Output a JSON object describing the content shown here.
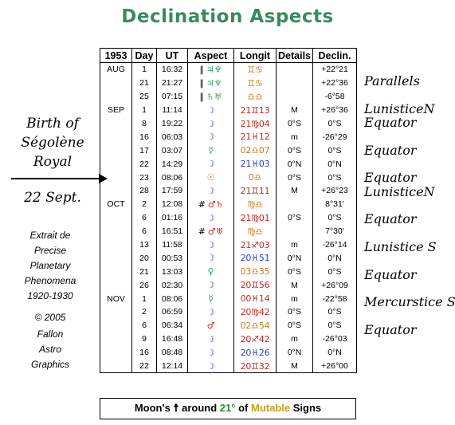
{
  "title": "Declination Aspects",
  "left": {
    "birth_lines": [
      "Birth of",
      "Ségolène",
      "Royal"
    ],
    "date": "22 Sept.",
    "credits": [
      "Extrait de",
      "Precise",
      "Planetary",
      "Phenomena",
      "1920-1930"
    ],
    "copyright": "© 2005",
    "publisher": [
      "Fallon",
      "Astro",
      "Graphics"
    ]
  },
  "table": {
    "headers": [
      "1953",
      "Day",
      "UT",
      "Aspect",
      "Longit",
      "Details",
      "Declin."
    ],
    "rows": [
      {
        "month": "AUG",
        "day": "1",
        "ut": "16:32",
        "p1": "∥",
        "a": "♃♆",
        "ac": "g",
        "lng": "♊♋",
        "lc": "o",
        "det": "",
        "dec": "+22°21"
      },
      {
        "month": "",
        "day": "21",
        "ut": "21:27",
        "p1": "∥",
        "a": "♃♆",
        "ac": "g",
        "lng": "♊♋",
        "lc": "o",
        "det": "",
        "dec": "+22°36"
      },
      {
        "month": "",
        "day": "25",
        "ut": "07:15",
        "p1": "∥",
        "a": "♄♅",
        "ac": "g",
        "lng": "♎♎",
        "lc": "o",
        "det": "",
        "dec": "-6°58"
      },
      {
        "month": "SEP",
        "day": "1",
        "ut": "11:14",
        "p1": "",
        "a": "☽",
        "ac": "b",
        "lng": "21♊13",
        "lc": "r",
        "det": "M",
        "dec": "+26°36"
      },
      {
        "month": "",
        "day": "8",
        "ut": "19:22",
        "p1": "",
        "a": "☽",
        "ac": "b",
        "lng": "21♍04",
        "lc": "r",
        "det": "0°S",
        "dec": "0°S"
      },
      {
        "month": "",
        "day": "16",
        "ut": "06:03",
        "p1": "",
        "a": "☽",
        "ac": "b",
        "lng": "21♓12",
        "lc": "r",
        "det": "m",
        "dec": "-26°29"
      },
      {
        "month": "",
        "day": "17",
        "ut": "03:07",
        "p1": "",
        "a": "☿",
        "ac": "g",
        "lng": "02♎07",
        "lc": "o",
        "det": "0°S",
        "dec": "0°S"
      },
      {
        "month": "",
        "day": "22",
        "ut": "14:29",
        "p1": "",
        "a": "☽",
        "ac": "b",
        "lng": "21♓03",
        "lc": "b",
        "det": "0°N",
        "dec": "0°N"
      },
      {
        "month": "",
        "day": "23",
        "ut": "08:06",
        "p1": "",
        "a": "☉",
        "ac": "o",
        "lng": "0♎",
        "lc": "o",
        "det": "0°S",
        "dec": "0°S"
      },
      {
        "month": "",
        "day": "28",
        "ut": "17:59",
        "p1": "",
        "a": "☽",
        "ac": "b",
        "lng": "21♊11",
        "lc": "r",
        "det": "M",
        "dec": "+26°23"
      },
      {
        "month": "OCT",
        "day": "2",
        "ut": "12:08",
        "p1": "#",
        "a": "♂♄",
        "ac": "r",
        "lng": "♍♎",
        "lc": "o",
        "det": "",
        "dec": "8°31'"
      },
      {
        "month": "",
        "day": "6",
        "ut": "01:16",
        "p1": "",
        "a": "☽",
        "ac": "b",
        "lng": "21♍01",
        "lc": "r",
        "det": "0°S",
        "dec": "0°S"
      },
      {
        "month": "",
        "day": "6",
        "ut": "16:51",
        "p1": "#",
        "a": "♂♅",
        "ac": "r",
        "lng": "♍♎",
        "lc": "o",
        "det": "",
        "dec": "7°30'"
      },
      {
        "month": "",
        "day": "13",
        "ut": "11:58",
        "p1": "",
        "a": "☽",
        "ac": "b",
        "lng": "21♐03",
        "lc": "r",
        "det": "m",
        "dec": "-26°14"
      },
      {
        "month": "",
        "day": "20",
        "ut": "00:53",
        "p1": "",
        "a": "☽",
        "ac": "b",
        "lng": "20♓51",
        "lc": "b",
        "det": "0°N",
        "dec": "0°N"
      },
      {
        "month": "",
        "day": "21",
        "ut": "13:03",
        "p1": "",
        "a": "♀",
        "ac": "g",
        "lng": "03♎35",
        "lc": "o",
        "det": "0°S",
        "dec": "0°S"
      },
      {
        "month": "",
        "day": "26",
        "ut": "02:30",
        "p1": "",
        "a": "☽",
        "ac": "b",
        "lng": "20♊56",
        "lc": "r",
        "det": "M",
        "dec": "+26°09"
      },
      {
        "month": "NOV",
        "day": "1",
        "ut": "08:06",
        "p1": "",
        "a": "☿",
        "ac": "g",
        "lng": "00♓14",
        "lc": "r",
        "det": "m",
        "dec": "-22°58"
      },
      {
        "month": "",
        "day": "2",
        "ut": "06:59",
        "p1": "",
        "a": "☽",
        "ac": "b",
        "lng": "20♍42",
        "lc": "r",
        "det": "0°S",
        "dec": "0°S"
      },
      {
        "month": "",
        "day": "6",
        "ut": "06:34",
        "p1": "",
        "a": "♂",
        "ac": "r",
        "lng": "02♎54",
        "lc": "o",
        "det": "0°S",
        "dec": "0°S"
      },
      {
        "month": "",
        "day": "9",
        "ut": "16:48",
        "p1": "",
        "a": "☽",
        "ac": "b",
        "lng": "20♐42",
        "lc": "r",
        "det": "m",
        "dec": "-26°03"
      },
      {
        "month": "",
        "day": "16",
        "ut": "08:48",
        "p1": "",
        "a": "☽",
        "ac": "b",
        "lng": "20♓26",
        "lc": "b",
        "det": "0°N",
        "dec": "0°N"
      },
      {
        "month": "",
        "day": "22",
        "ut": "12:14",
        "p1": "",
        "a": "☽",
        "ac": "b",
        "lng": "20♊32",
        "lc": "r",
        "det": "M",
        "dec": "+26°00"
      }
    ]
  },
  "footer": {
    "pre": "Moon's ☨ around",
    "deg": "21°",
    "mid": "of",
    "mut": "Mutable",
    "post": "Signs"
  },
  "notes": [
    {
      "text": "Parallels",
      "row": 1
    },
    {
      "text": "LunisticeN",
      "row": 3
    },
    {
      "text": "Equator",
      "row": 4
    },
    {
      "text": "Equator",
      "row": 6
    },
    {
      "text": "Equator",
      "row": 8
    },
    {
      "text": "LunisticeN",
      "row": 9
    },
    {
      "text": "Equator",
      "row": 11
    },
    {
      "text": "Lunistice S",
      "row": 13
    },
    {
      "text": "Equator",
      "row": 15
    },
    {
      "text": "Mercurstice S",
      "row": 17
    },
    {
      "text": "Equator",
      "row": 19
    }
  ]
}
